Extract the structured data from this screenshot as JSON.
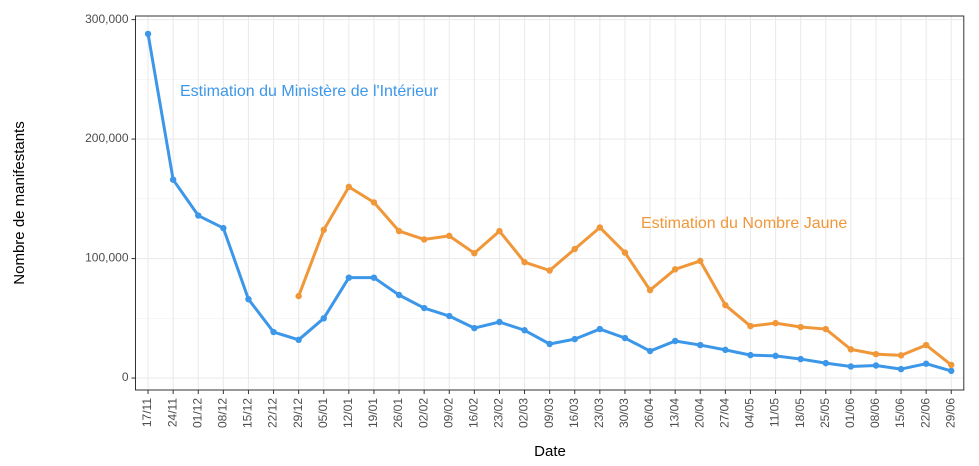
{
  "chart_data": {
    "type": "line",
    "x_label": "Date",
    "y_label": "Nombre de manifestants",
    "categories": [
      "17/11",
      "24/11",
      "01/12",
      "08/12",
      "15/12",
      "22/12",
      "29/12",
      "05/01",
      "12/01",
      "19/01",
      "26/01",
      "02/02",
      "09/02",
      "16/02",
      "23/02",
      "02/03",
      "09/03",
      "16/03",
      "23/03",
      "30/03",
      "06/04",
      "13/04",
      "20/04",
      "27/04",
      "04/05",
      "11/05",
      "18/05",
      "25/05",
      "01/06",
      "08/06",
      "15/06",
      "22/06",
      "29/06"
    ],
    "series": [
      {
        "name": "Estimation du Ministère de l'Intérieur",
        "color": "#3d97e8",
        "values": [
          288000,
          166000,
          136000,
          125500,
          66000,
          38500,
          32000,
          50000,
          84000,
          84000,
          69500,
          58600,
          51900,
          41800,
          46900,
          40000,
          28500,
          32600,
          41000,
          33500,
          22600,
          31000,
          27600,
          23600,
          19200,
          18600,
          15900,
          12500,
          9700,
          10500,
          7500,
          12000,
          6000
        ]
      },
      {
        "name": "Estimation du Nombre Jaune",
        "color": "#f0973a",
        "values": [
          null,
          null,
          null,
          null,
          null,
          null,
          68600,
          124000,
          160000,
          147000,
          123000,
          116000,
          119000,
          104500,
          123000,
          97000,
          90000,
          108000,
          126000,
          105000,
          73600,
          91000,
          98000,
          61000,
          43500,
          46000,
          42700,
          41000,
          24000,
          20000,
          19000,
          27600,
          11000
        ]
      }
    ],
    "ylim": [
      -10000,
      303000
    ],
    "yticks": [
      0,
      {
        "value": 100000,
        "label": "100,000"
      },
      {
        "value": 200000,
        "label": "200,000"
      },
      {
        "value": 300000,
        "label": "300,000"
      }
    ],
    "grid": true
  }
}
